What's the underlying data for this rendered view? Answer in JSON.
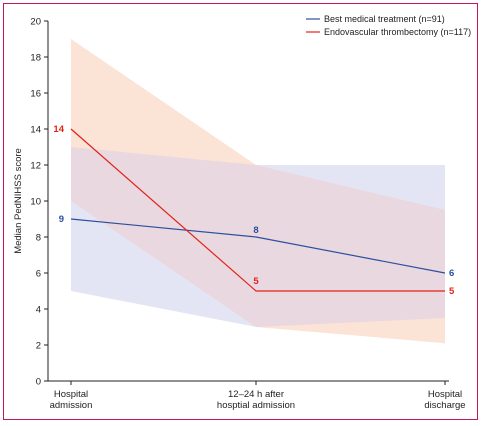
{
  "chart_data": {
    "type": "line",
    "ylabel": "Median PedNIHSS score",
    "xlabel": "",
    "ylim": [
      0,
      20
    ],
    "yticks": [
      0,
      2,
      4,
      6,
      8,
      10,
      12,
      14,
      16,
      18,
      20
    ],
    "grid": false,
    "legend_position": "top-right",
    "categories": [
      [
        "Hospital",
        "admission"
      ],
      [
        "12–24 h after",
        "hosptial admission"
      ],
      [
        "Hospital",
        "discharge"
      ]
    ],
    "series": [
      {
        "name": "Best medical treatment (n=91)",
        "color": "#2c4f9e",
        "band_color": "#e3e5f4",
        "values": [
          9,
          8,
          6
        ],
        "lower": [
          5,
          3,
          3.5
        ],
        "upper": [
          13,
          12,
          12
        ]
      },
      {
        "name": "Endovascular thrombectomy (n=117)",
        "color": "#e2231a",
        "band_color": "#fbe3d6",
        "values": [
          14,
          5,
          5
        ],
        "lower": [
          10,
          3,
          2.1
        ],
        "upper": [
          19,
          12,
          9.5
        ]
      }
    ],
    "overlap_color": "#e9d8df"
  }
}
